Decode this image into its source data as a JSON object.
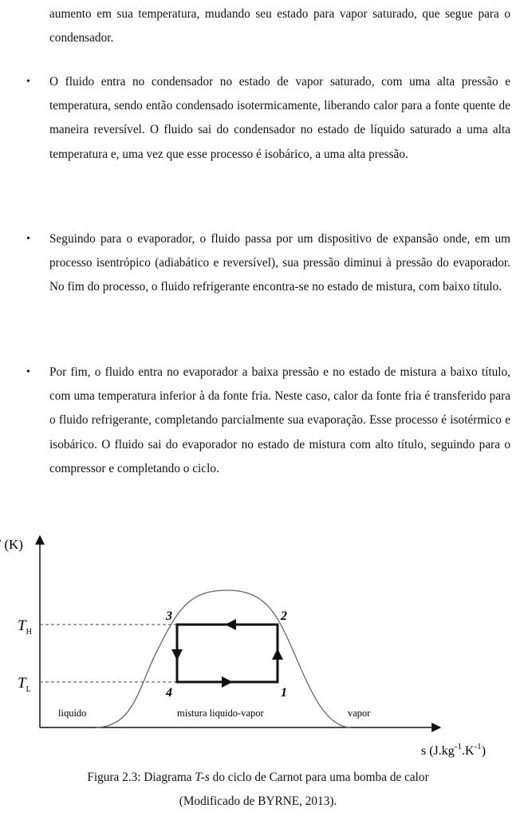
{
  "intro": "aumento em sua temperatura, mudando seu estado para vapor saturado, que segue para o condensador.",
  "bullets": [
    "O fluido entra no condensador no estado de vapor saturado, com uma alta pressão e temperatura, sendo então condensado isotermicamente, liberando calor para a fonte quente de maneira reversível. O fluido sai do condensador no estado de líquido saturado a uma alta temperatura e, uma vez que esse processo é isobárico, a uma alta pressão.",
    "Seguindo para o evaporador, o fluido passa por um dispositivo de expansão onde, em um processo isentrópico (adiabático e reversível), sua pressão diminui à pressão do evaporador. No fim do processo, o fluido refrigerante encontra-se no estado de mistura, com baixo título.",
    "Por fim, o fluido entra no evaporador a baixa pressão e no estado de mistura a baixo título, com uma temperatura inferior à da fonte fria. Neste caso, calor da fonte fria é transferido para o fluido refrigerante, completando parcialmente sua evaporação. Esse processo é isotérmico e isobárico. O fluido sai do evaporador no estado de mistura com alto título, seguindo para o compressor e completando o ciclo."
  ],
  "figure": {
    "y_axis_label": "T (K)",
    "x_axis_label": [
      "s (J.kg",
      "-1",
      ".K",
      "-1",
      ")"
    ],
    "levels": [
      {
        "symbol": "T",
        "subscript": "H"
      },
      {
        "symbol": "T",
        "subscript": "L"
      }
    ],
    "points": [
      "3",
      "2",
      "4",
      "1"
    ],
    "regions": [
      "liquido",
      "mistura liquido-vapor",
      "vapor"
    ],
    "caption": [
      "Figura 2.3: Diagrama ",
      "T-s",
      " do ciclo de Carnot para uma bomba de calor"
    ],
    "source": "(Modificado de BYRNE, 2013)."
  }
}
